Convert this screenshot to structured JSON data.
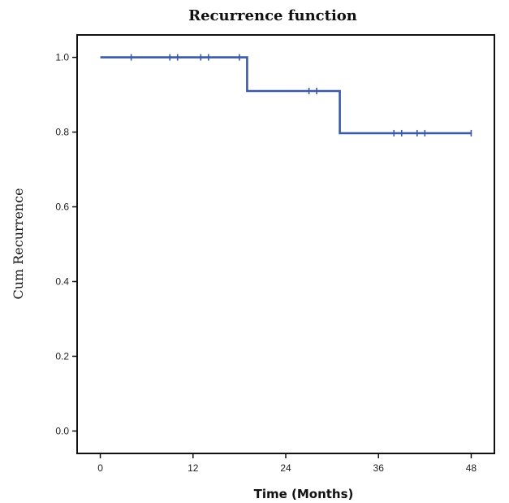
{
  "chart_data": {
    "type": "line",
    "title": "Recurrence function",
    "xlabel": "Time (Months)",
    "ylabel": "Cum Recurrence",
    "xlim": [
      -3,
      51
    ],
    "ylim": [
      -0.06,
      1.06
    ],
    "xticks": [
      0,
      12,
      24,
      36,
      48
    ],
    "yticks": [
      0.0,
      0.2,
      0.4,
      0.6,
      0.8,
      1.0
    ],
    "xtick_labels": [
      "0",
      "12",
      "24",
      "36",
      "48"
    ],
    "ytick_labels": [
      "0.0",
      "0.2",
      "0.4",
      "0.6",
      "0.8",
      "1.0"
    ],
    "line_color": "#3a5aa8",
    "step_points": [
      [
        0,
        1.0
      ],
      [
        19,
        1.0
      ],
      [
        19,
        0.91
      ],
      [
        31,
        0.91
      ],
      [
        31,
        0.797
      ],
      [
        48,
        0.797
      ]
    ],
    "censor_marks": [
      [
        4,
        1.0
      ],
      [
        9,
        1.0
      ],
      [
        10,
        1.0
      ],
      [
        13,
        1.0
      ],
      [
        14,
        1.0
      ],
      [
        18,
        1.0
      ],
      [
        27,
        0.91
      ],
      [
        28,
        0.91
      ],
      [
        38,
        0.797
      ],
      [
        39,
        0.797
      ],
      [
        41,
        0.797
      ],
      [
        42,
        0.797
      ],
      [
        48,
        0.797
      ]
    ]
  }
}
